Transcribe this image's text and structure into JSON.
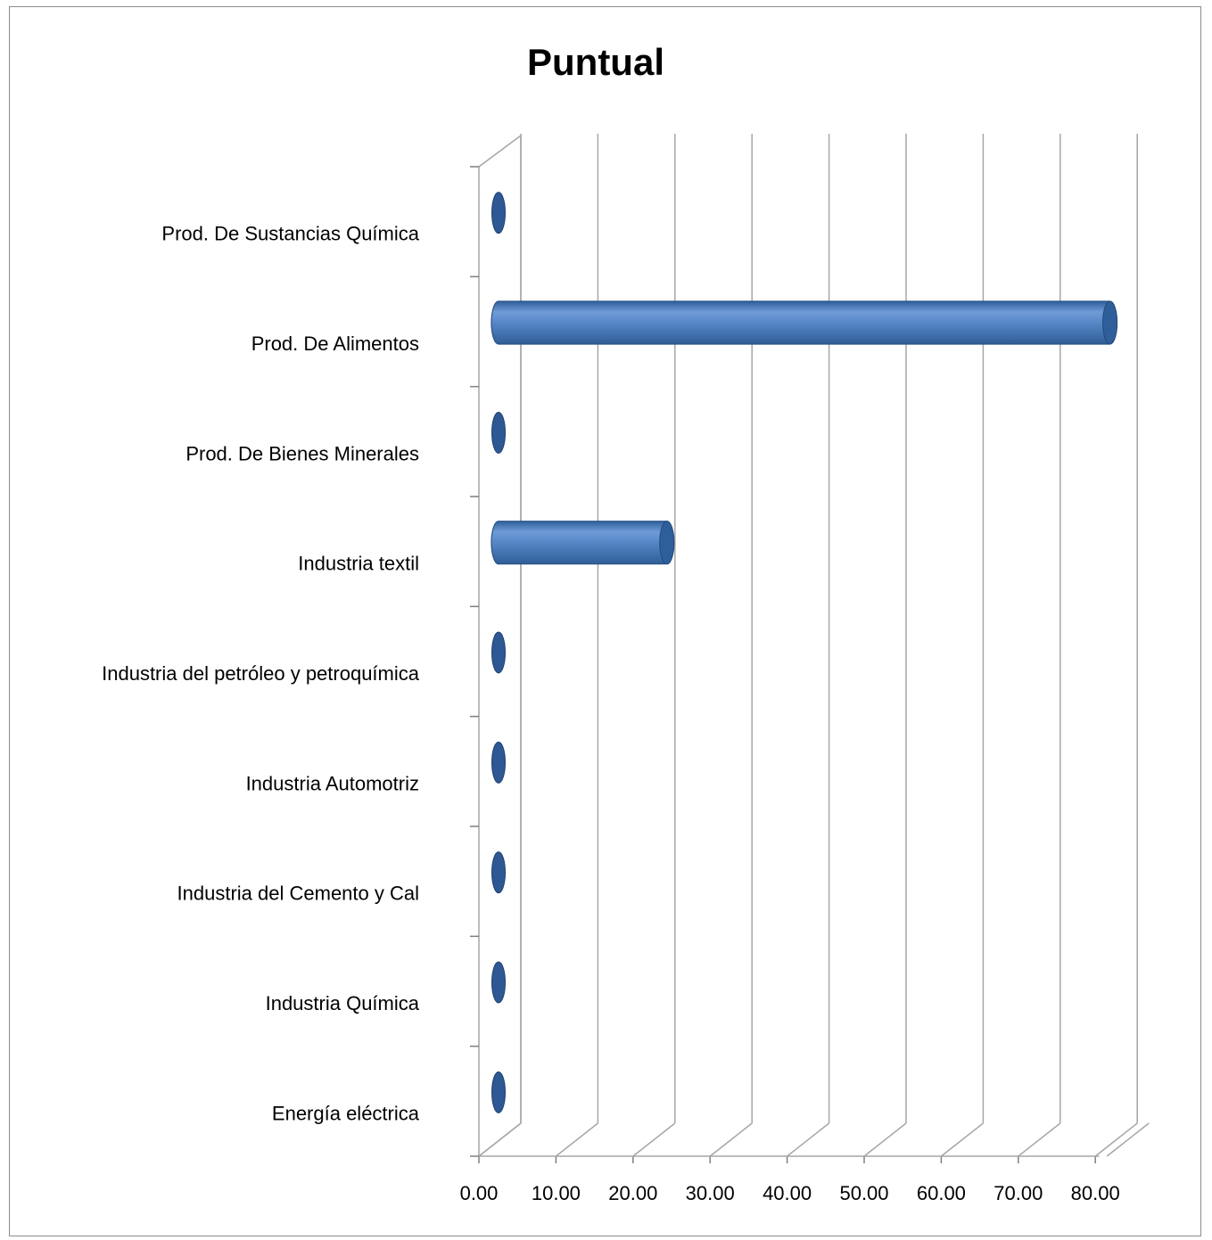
{
  "chart_data": {
    "type": "bar",
    "orientation": "horizontal",
    "style": "3d-cylinder",
    "title": "Puntual",
    "xlabel": "",
    "ylabel": "",
    "categories": [
      "Prod. De Sustancias Química",
      "Prod. De Alimentos",
      "Prod. De Bienes Minerales",
      "Industria textil",
      "Industria del petróleo y petroquímica",
      "Industria Automotriz",
      "Industria del Cemento y Cal",
      "Industria Química",
      "Energía eléctrica"
    ],
    "values": [
      0,
      80.5,
      0,
      23,
      0,
      0,
      0,
      0,
      0
    ],
    "xlim": [
      0,
      80
    ],
    "xticks": [
      "0.00",
      "10.00",
      "20.00",
      "30.00",
      "40.00",
      "50.00",
      "60.00",
      "70.00",
      "80.00"
    ],
    "xtick_values": [
      0,
      10,
      20,
      30,
      40,
      50,
      60,
      70,
      80
    ],
    "grid": true,
    "legend": "none",
    "bar_color": "#4a7ebb"
  }
}
